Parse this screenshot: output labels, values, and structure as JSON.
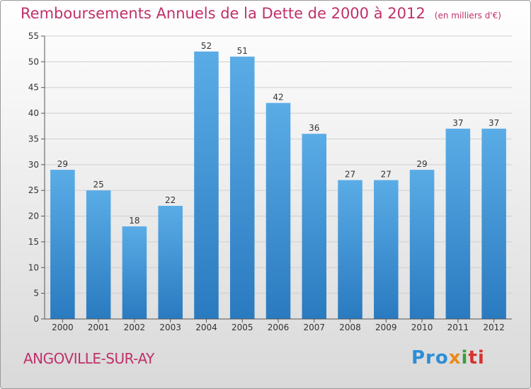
{
  "header": {
    "title": "Remboursements Annuels de la Dette de 2000 à 2012",
    "unit": "(en milliers d'€)"
  },
  "footer": {
    "commune": "ANGOVILLE-SUR-AY",
    "logo": [
      "Pro",
      "x",
      "i",
      "ti"
    ]
  },
  "colors": {
    "bar_light": "#5aace6",
    "bar_dark": "#2a7ac0",
    "accent": "#c0306a"
  },
  "chart_data": {
    "type": "bar",
    "categories": [
      "2000",
      "2001",
      "2002",
      "2003",
      "2004",
      "2005",
      "2006",
      "2007",
      "2008",
      "2009",
      "2010",
      "2011",
      "2012"
    ],
    "values": [
      29,
      25,
      18,
      22,
      52,
      51,
      42,
      36,
      27,
      27,
      29,
      37,
      37
    ],
    "ylim": [
      0,
      55
    ],
    "yticks": [
      0,
      5,
      10,
      15,
      20,
      25,
      30,
      35,
      40,
      45,
      50,
      55
    ],
    "grid": true,
    "legend": "none"
  }
}
